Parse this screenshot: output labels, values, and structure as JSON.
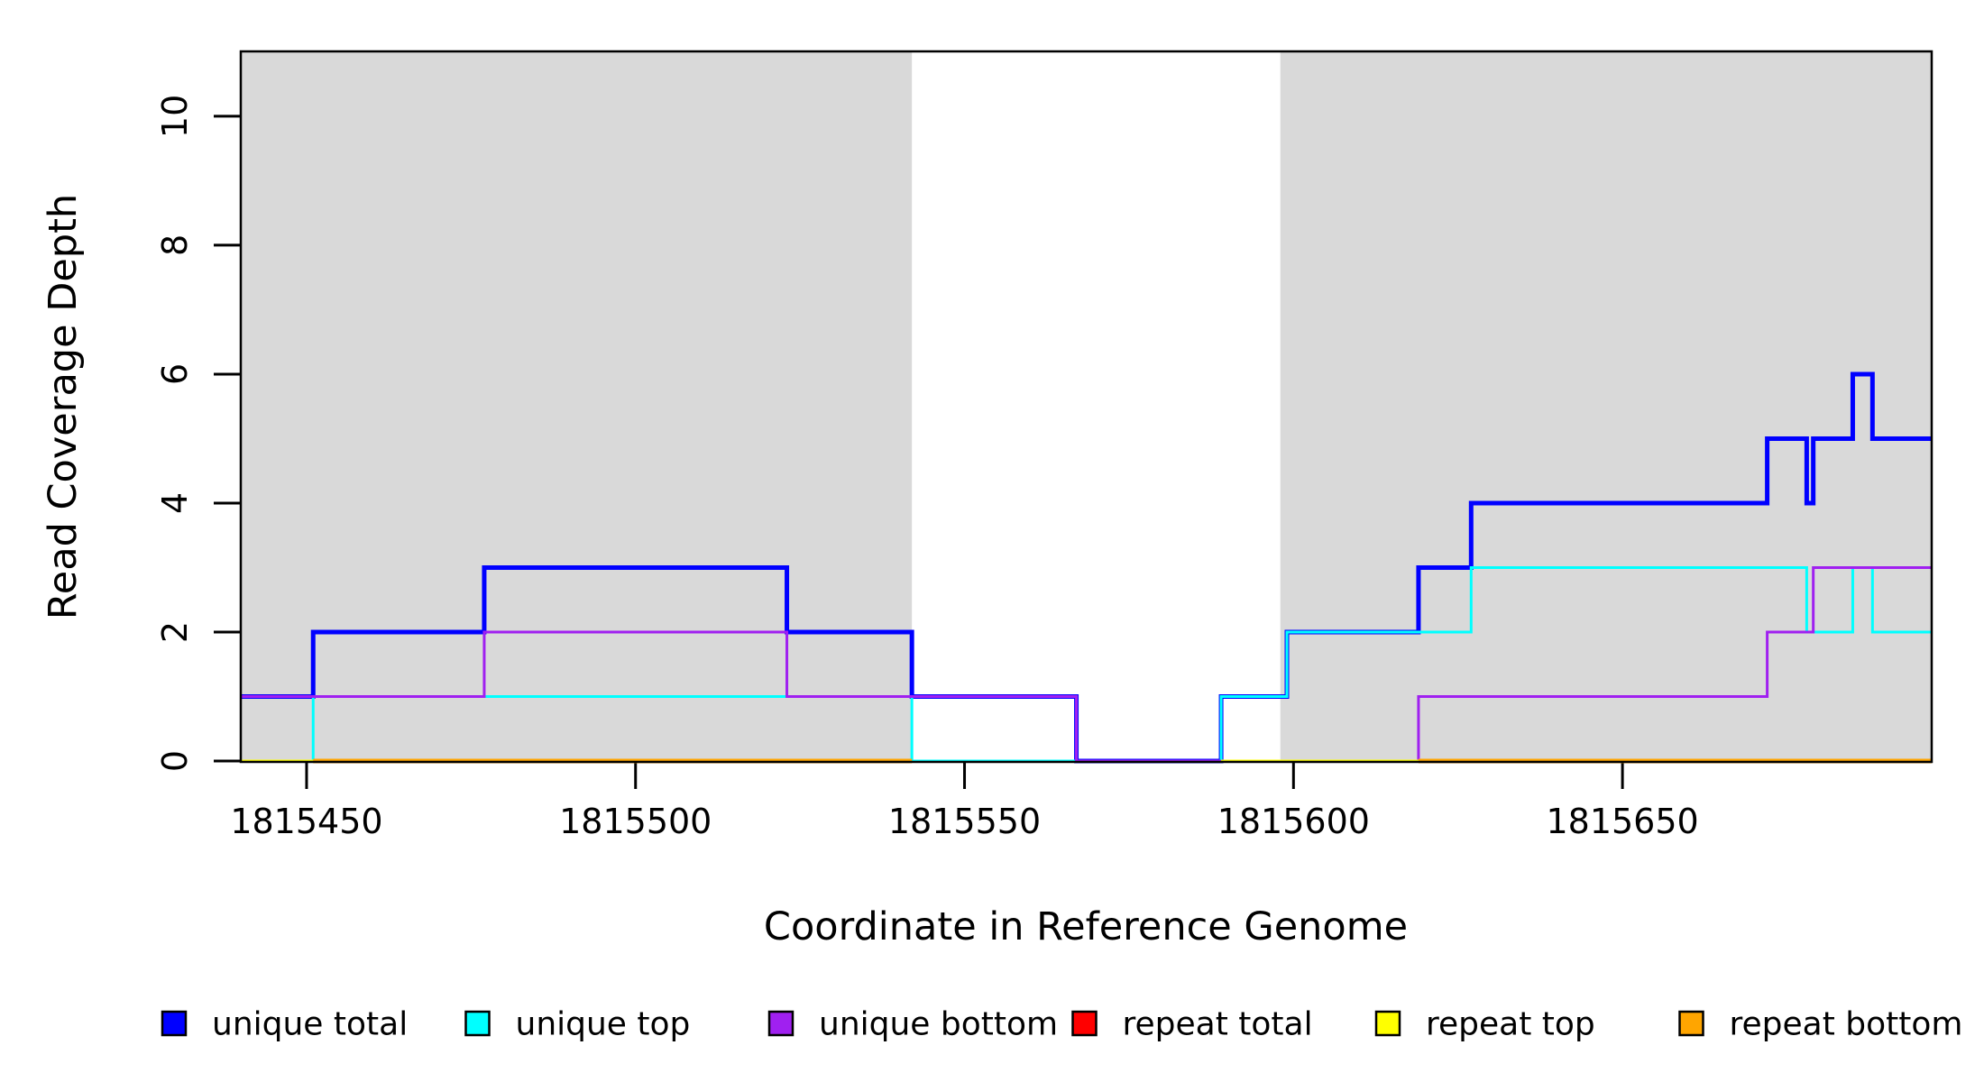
{
  "chart_data": {
    "type": "line",
    "subtype": "step-coverage",
    "title": "",
    "xlabel": "Coordinate in Reference Genome",
    "ylabel": "Read Coverage Depth",
    "xlim": [
      1815440,
      1815697
    ],
    "ylim": [
      0,
      11
    ],
    "x_ticks": [
      1815450,
      1815500,
      1815550,
      1815600,
      1815650
    ],
    "x_tick_labels": [
      "1815450",
      "1815500",
      "1815550",
      "1815600",
      "1815650"
    ],
    "y_ticks": [
      0,
      2,
      4,
      6,
      8,
      10
    ],
    "y_tick_labels": [
      "0",
      "2",
      "4",
      "6",
      "8",
      "10"
    ],
    "grid": false,
    "frame_color": "#000000",
    "background_regions": [
      {
        "name": "repeat-region-left",
        "x0": 1815440,
        "x1": 1815542,
        "color": "#D9D9D9"
      },
      {
        "name": "repeat-region-right",
        "x0": 1815598,
        "x1": 1815697,
        "color": "#D9D9D9"
      }
    ],
    "series": [
      {
        "name": "unique total",
        "color": "#0000FF",
        "width": 5,
        "segments": [
          {
            "steps": [
              [
                1815440,
                1
              ],
              [
                1815451,
                2
              ],
              [
                1815477,
                3
              ],
              [
                1815523,
                2
              ],
              [
                1815542,
                1
              ],
              [
                1815567,
                0
              ],
              [
                1815589,
                1
              ],
              [
                1815599,
                2
              ],
              [
                1815619,
                3
              ],
              [
                1815627,
                4
              ],
              [
                1815672,
                5
              ],
              [
                1815678,
                4
              ],
              [
                1815679,
                5
              ],
              [
                1815685,
                6
              ],
              [
                1815688,
                5
              ]
            ],
            "x_end": 1815697
          }
        ]
      },
      {
        "name": "unique top",
        "color": "#00FFFF",
        "width": 3,
        "segments": [
          {
            "steps": [
              [
                1815440,
                0
              ],
              [
                1815451,
                1
              ],
              [
                1815542,
                0
              ],
              [
                1815589,
                1
              ],
              [
                1815599,
                2
              ],
              [
                1815627,
                3
              ],
              [
                1815678,
                2
              ],
              [
                1815685,
                3
              ],
              [
                1815688,
                2
              ]
            ],
            "x_end": 1815697
          }
        ]
      },
      {
        "name": "unique bottom",
        "color": "#A020F0",
        "width": 3,
        "segments": [
          {
            "steps": [
              [
                1815440,
                1
              ],
              [
                1815477,
                2
              ],
              [
                1815523,
                1
              ],
              [
                1815567,
                0
              ],
              [
                1815619,
                1
              ],
              [
                1815672,
                2
              ],
              [
                1815679,
                3
              ]
            ],
            "x_end": 1815697
          }
        ]
      },
      {
        "name": "repeat total",
        "color": "#FF0000",
        "width": 3,
        "segments": [
          {
            "steps": [
              [
                1815440,
                0
              ]
            ],
            "x_end": 1815542
          },
          {
            "steps": [
              [
                1815589,
                0
              ]
            ],
            "x_end": 1815697
          }
        ]
      },
      {
        "name": "repeat top",
        "color": "#FFFF00",
        "width": 3,
        "segments": [
          {
            "steps": [
              [
                1815440,
                0
              ]
            ],
            "x_end": 1815542
          },
          {
            "steps": [
              [
                1815589,
                0
              ]
            ],
            "x_end": 1815697
          }
        ]
      },
      {
        "name": "repeat bottom",
        "color": "#FFA500",
        "width": 5,
        "segments": [
          {
            "steps": [
              [
                1815451,
                0
              ]
            ],
            "x_end": 1815542
          },
          {
            "steps": [
              [
                1815619,
                0
              ]
            ],
            "x_end": 1815697
          }
        ]
      }
    ],
    "legend": {
      "position": "bottom",
      "entries": [
        {
          "label": "unique total",
          "color": "#0000FF"
        },
        {
          "label": "unique top",
          "color": "#00FFFF"
        },
        {
          "label": "unique bottom",
          "color": "#A020F0"
        },
        {
          "label": "repeat total",
          "color": "#FF0000"
        },
        {
          "label": "repeat top",
          "color": "#FFFF00"
        },
        {
          "label": "repeat bottom",
          "color": "#FFA500"
        }
      ]
    }
  }
}
